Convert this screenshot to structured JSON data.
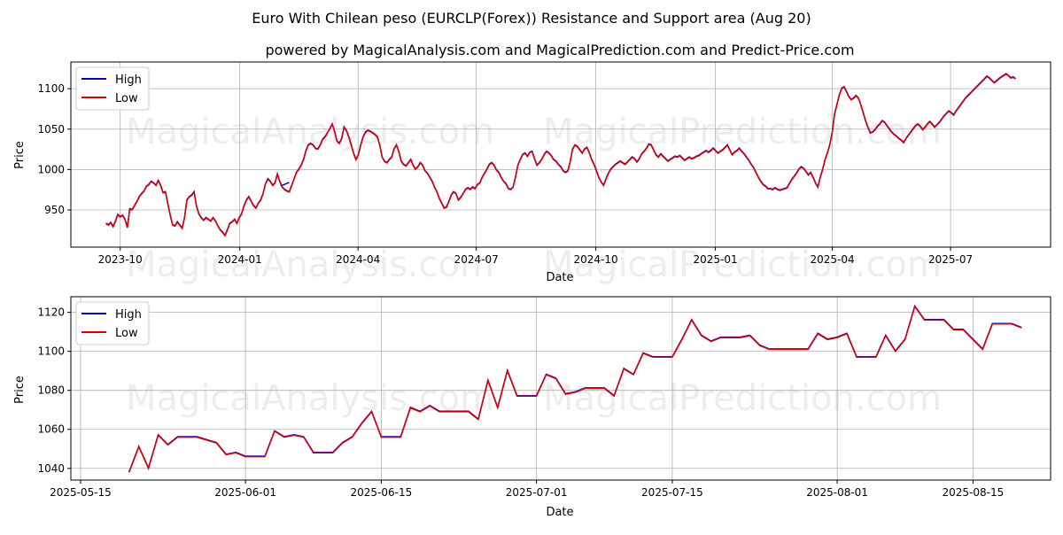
{
  "title": "Euro With Chilean peso (EURCLP(Forex)) Resistance and Support area (Aug 20)",
  "subtitle": "powered by MagicalAnalysis.com and MagicalPrediction.com and Predict-Price.com",
  "watermarks": [
    "MagicalAnalysis.com",
    "MagicalPrediction.com"
  ],
  "colors": {
    "high": "#0000cc",
    "low": "#dd0000"
  },
  "chart_data": [
    {
      "type": "line",
      "name": "full-range",
      "xlabel": "Date",
      "ylabel": "Price",
      "legend": [
        "High",
        "Low"
      ],
      "legend_position": "top-left",
      "grid": true,
      "x_start": "2023-09-20",
      "x_end": "2025-08-20",
      "xlim": [
        "2023-08-24",
        "2025-09-16"
      ],
      "ylim": [
        904,
        1133
      ],
      "xticks": [
        {
          "date": "2023-10-01",
          "label": "2023-10"
        },
        {
          "date": "2024-01-01",
          "label": "2024-01"
        },
        {
          "date": "2024-04-01",
          "label": "2024-04"
        },
        {
          "date": "2024-07-01",
          "label": "2024-07"
        },
        {
          "date": "2024-10-01",
          "label": "2024-10"
        },
        {
          "date": "2025-01-01",
          "label": "2025-01"
        },
        {
          "date": "2025-04-01",
          "label": "2025-04"
        },
        {
          "date": "2025-07-01",
          "label": "2025-07"
        }
      ],
      "yticks": [
        950,
        1000,
        1050,
        1100
      ],
      "low_values": [
        933,
        931,
        934,
        929,
        936,
        944,
        941,
        943,
        938,
        928,
        951,
        950,
        955,
        960,
        966,
        970,
        973,
        979,
        981,
        985,
        983,
        980,
        986,
        980,
        971,
        972,
        957,
        943,
        931,
        930,
        935,
        931,
        927,
        940,
        962,
        966,
        968,
        972,
        955,
        945,
        940,
        937,
        940,
        938,
        936,
        940,
        936,
        930,
        925,
        922,
        918,
        925,
        933,
        935,
        938,
        933,
        940,
        945,
        955,
        962,
        966,
        960,
        955,
        952,
        958,
        962,
        970,
        982,
        988,
        985,
        980,
        983,
        994,
        985,
        978,
        975,
        973,
        972,
        980,
        988,
        996,
        1000,
        1005,
        1012,
        1023,
        1030,
        1032,
        1030,
        1026,
        1025,
        1030,
        1037,
        1040,
        1045,
        1050,
        1056,
        1047,
        1035,
        1032,
        1038,
        1052,
        1048,
        1040,
        1030,
        1020,
        1012,
        1018,
        1030,
        1040,
        1046,
        1048,
        1047,
        1045,
        1043,
        1040,
        1030,
        1015,
        1010,
        1008,
        1012,
        1015,
        1025,
        1030,
        1022,
        1010,
        1006,
        1004,
        1008,
        1012,
        1005,
        1000,
        1003,
        1008,
        1005,
        998,
        995,
        990,
        985,
        978,
        972,
        964,
        958,
        952,
        953,
        960,
        968,
        972,
        970,
        962,
        965,
        970,
        975,
        977,
        975,
        978,
        976,
        981,
        983,
        990,
        995,
        1000,
        1006,
        1008,
        1005,
        999,
        996,
        990,
        985,
        982,
        976,
        975,
        978,
        990,
        1005,
        1012,
        1018,
        1020,
        1016,
        1021,
        1022,
        1013,
        1005,
        1008,
        1012,
        1018,
        1022,
        1020,
        1017,
        1012,
        1010,
        1006,
        1003,
        998,
        996,
        998,
        1010,
        1025,
        1030,
        1028,
        1024,
        1020,
        1025,
        1027,
        1020,
        1012,
        1006,
        998,
        990,
        984,
        980,
        988,
        995,
        1000,
        1003,
        1006,
        1008,
        1010,
        1008,
        1006,
        1009,
        1012,
        1015,
        1013,
        1009,
        1013,
        1019,
        1022,
        1026,
        1031,
        1030,
        1024,
        1018,
        1015,
        1019,
        1016,
        1013,
        1010,
        1012,
        1014,
        1016,
        1015,
        1017,
        1014,
        1011,
        1013,
        1015,
        1013,
        1014,
        1016,
        1017,
        1019,
        1021,
        1023,
        1021,
        1023,
        1026,
        1023,
        1020,
        1022,
        1024,
        1027,
        1030,
        1024,
        1018,
        1021,
        1023,
        1026,
        1022,
        1019,
        1015,
        1011,
        1006,
        1002,
        996,
        990,
        985,
        981,
        979,
        976,
        976,
        975,
        977,
        975,
        974,
        975,
        976,
        977,
        982,
        987,
        991,
        995,
        1000,
        1003,
        1001,
        997,
        993,
        996,
        990,
        983,
        978,
        990,
        1000,
        1012,
        1020,
        1030,
        1045,
        1068,
        1080,
        1092,
        1100,
        1102,
        1096,
        1090,
        1086,
        1088,
        1091,
        1088,
        1080,
        1070,
        1060,
        1052,
        1045,
        1046,
        1049,
        1053,
        1056,
        1060,
        1058,
        1054,
        1050,
        1046,
        1043,
        1041,
        1038,
        1036,
        1033,
        1038,
        1042,
        1046,
        1050,
        1054,
        1056,
        1053,
        1049,
        1052,
        1056,
        1059,
        1056,
        1052,
        1055,
        1058,
        1062,
        1066,
        1069,
        1072,
        1070,
        1067,
        1072,
        1076,
        1080,
        1084,
        1088,
        1091,
        1094,
        1097,
        1100,
        1103,
        1106,
        1109,
        1112,
        1115,
        1113,
        1110,
        1107,
        1109,
        1112,
        1114,
        1116,
        1118,
        1116,
        1113,
        1114,
        1112
      ],
      "high_values_note": "High overlaps Low except a short blue segment near 2024-02"
    },
    {
      "type": "line",
      "name": "last-three-months",
      "xlabel": "Date",
      "ylabel": "Price",
      "legend": [
        "High",
        "Low"
      ],
      "legend_position": "top-left",
      "grid": true,
      "x_start": "2025-05-20",
      "x_end": "2025-08-20",
      "xlim": [
        "2025-05-14",
        "2025-08-23"
      ],
      "ylim": [
        1034,
        1128
      ],
      "xticks": [
        {
          "date": "2025-05-15",
          "label": "2025-05-15"
        },
        {
          "date": "2025-06-01",
          "label": "2025-06-01"
        },
        {
          "date": "2025-06-15",
          "label": "2025-06-15"
        },
        {
          "date": "2025-07-01",
          "label": "2025-07-01"
        },
        {
          "date": "2025-07-15",
          "label": "2025-07-15"
        },
        {
          "date": "2025-08-01",
          "label": "2025-08-01"
        },
        {
          "date": "2025-08-15",
          "label": "2025-08-15"
        }
      ],
      "yticks": [
        1040,
        1060,
        1080,
        1100,
        1120
      ],
      "points": [
        [
          "2025-05-20",
          1038
        ],
        [
          "2025-05-21",
          1051
        ],
        [
          "2025-05-22",
          1040
        ],
        [
          "2025-05-23",
          1057
        ],
        [
          "2025-05-24",
          1052
        ],
        [
          "2025-05-25",
          1056
        ],
        [
          "2025-05-27",
          1056
        ],
        [
          "2025-05-29",
          1053
        ],
        [
          "2025-05-30",
          1047
        ],
        [
          "2025-05-31",
          1048
        ],
        [
          "2025-06-01",
          1046
        ],
        [
          "2025-06-03",
          1046
        ],
        [
          "2025-06-04",
          1059
        ],
        [
          "2025-06-05",
          1056
        ],
        [
          "2025-06-06",
          1057
        ],
        [
          "2025-06-07",
          1056
        ],
        [
          "2025-06-08",
          1048
        ],
        [
          "2025-06-10",
          1048
        ],
        [
          "2025-06-11",
          1053
        ],
        [
          "2025-06-12",
          1056
        ],
        [
          "2025-06-13",
          1063
        ],
        [
          "2025-06-14",
          1069
        ],
        [
          "2025-06-15",
          1056
        ],
        [
          "2025-06-17",
          1056
        ],
        [
          "2025-06-18",
          1071
        ],
        [
          "2025-06-19",
          1069
        ],
        [
          "2025-06-20",
          1072
        ],
        [
          "2025-06-21",
          1069
        ],
        [
          "2025-06-24",
          1069
        ],
        [
          "2025-06-25",
          1065
        ],
        [
          "2025-06-26",
          1085
        ],
        [
          "2025-06-27",
          1071
        ],
        [
          "2025-06-28",
          1090
        ],
        [
          "2025-06-29",
          1077
        ],
        [
          "2025-07-01",
          1077
        ],
        [
          "2025-07-02",
          1088
        ],
        [
          "2025-07-03",
          1086
        ],
        [
          "2025-07-04",
          1078
        ],
        [
          "2025-07-05",
          1079
        ],
        [
          "2025-07-06",
          1081
        ],
        [
          "2025-07-08",
          1081
        ],
        [
          "2025-07-09",
          1077
        ],
        [
          "2025-07-10",
          1091
        ],
        [
          "2025-07-11",
          1088
        ],
        [
          "2025-07-12",
          1099
        ],
        [
          "2025-07-13",
          1097
        ],
        [
          "2025-07-15",
          1097
        ],
        [
          "2025-07-16",
          1106
        ],
        [
          "2025-07-17",
          1116
        ],
        [
          "2025-07-18",
          1108
        ],
        [
          "2025-07-19",
          1105
        ],
        [
          "2025-07-20",
          1107
        ],
        [
          "2025-07-22",
          1107
        ],
        [
          "2025-07-23",
          1108
        ],
        [
          "2025-07-24",
          1103
        ],
        [
          "2025-07-25",
          1101
        ],
        [
          "2025-07-26",
          1101
        ],
        [
          "2025-07-29",
          1101
        ],
        [
          "2025-07-30",
          1109
        ],
        [
          "2025-07-31",
          1106
        ],
        [
          "2025-08-01",
          1107
        ],
        [
          "2025-08-02",
          1109
        ],
        [
          "2025-08-03",
          1097
        ],
        [
          "2025-08-05",
          1097
        ],
        [
          "2025-08-06",
          1108
        ],
        [
          "2025-08-07",
          1100
        ],
        [
          "2025-08-08",
          1106
        ],
        [
          "2025-08-09",
          1123
        ],
        [
          "2025-08-10",
          1116
        ],
        [
          "2025-08-12",
          1116
        ],
        [
          "2025-08-13",
          1111
        ],
        [
          "2025-08-14",
          1111
        ],
        [
          "2025-08-16",
          1101
        ],
        [
          "2025-08-17",
          1114
        ],
        [
          "2025-08-19",
          1114
        ],
        [
          "2025-08-20",
          1112
        ]
      ]
    }
  ]
}
